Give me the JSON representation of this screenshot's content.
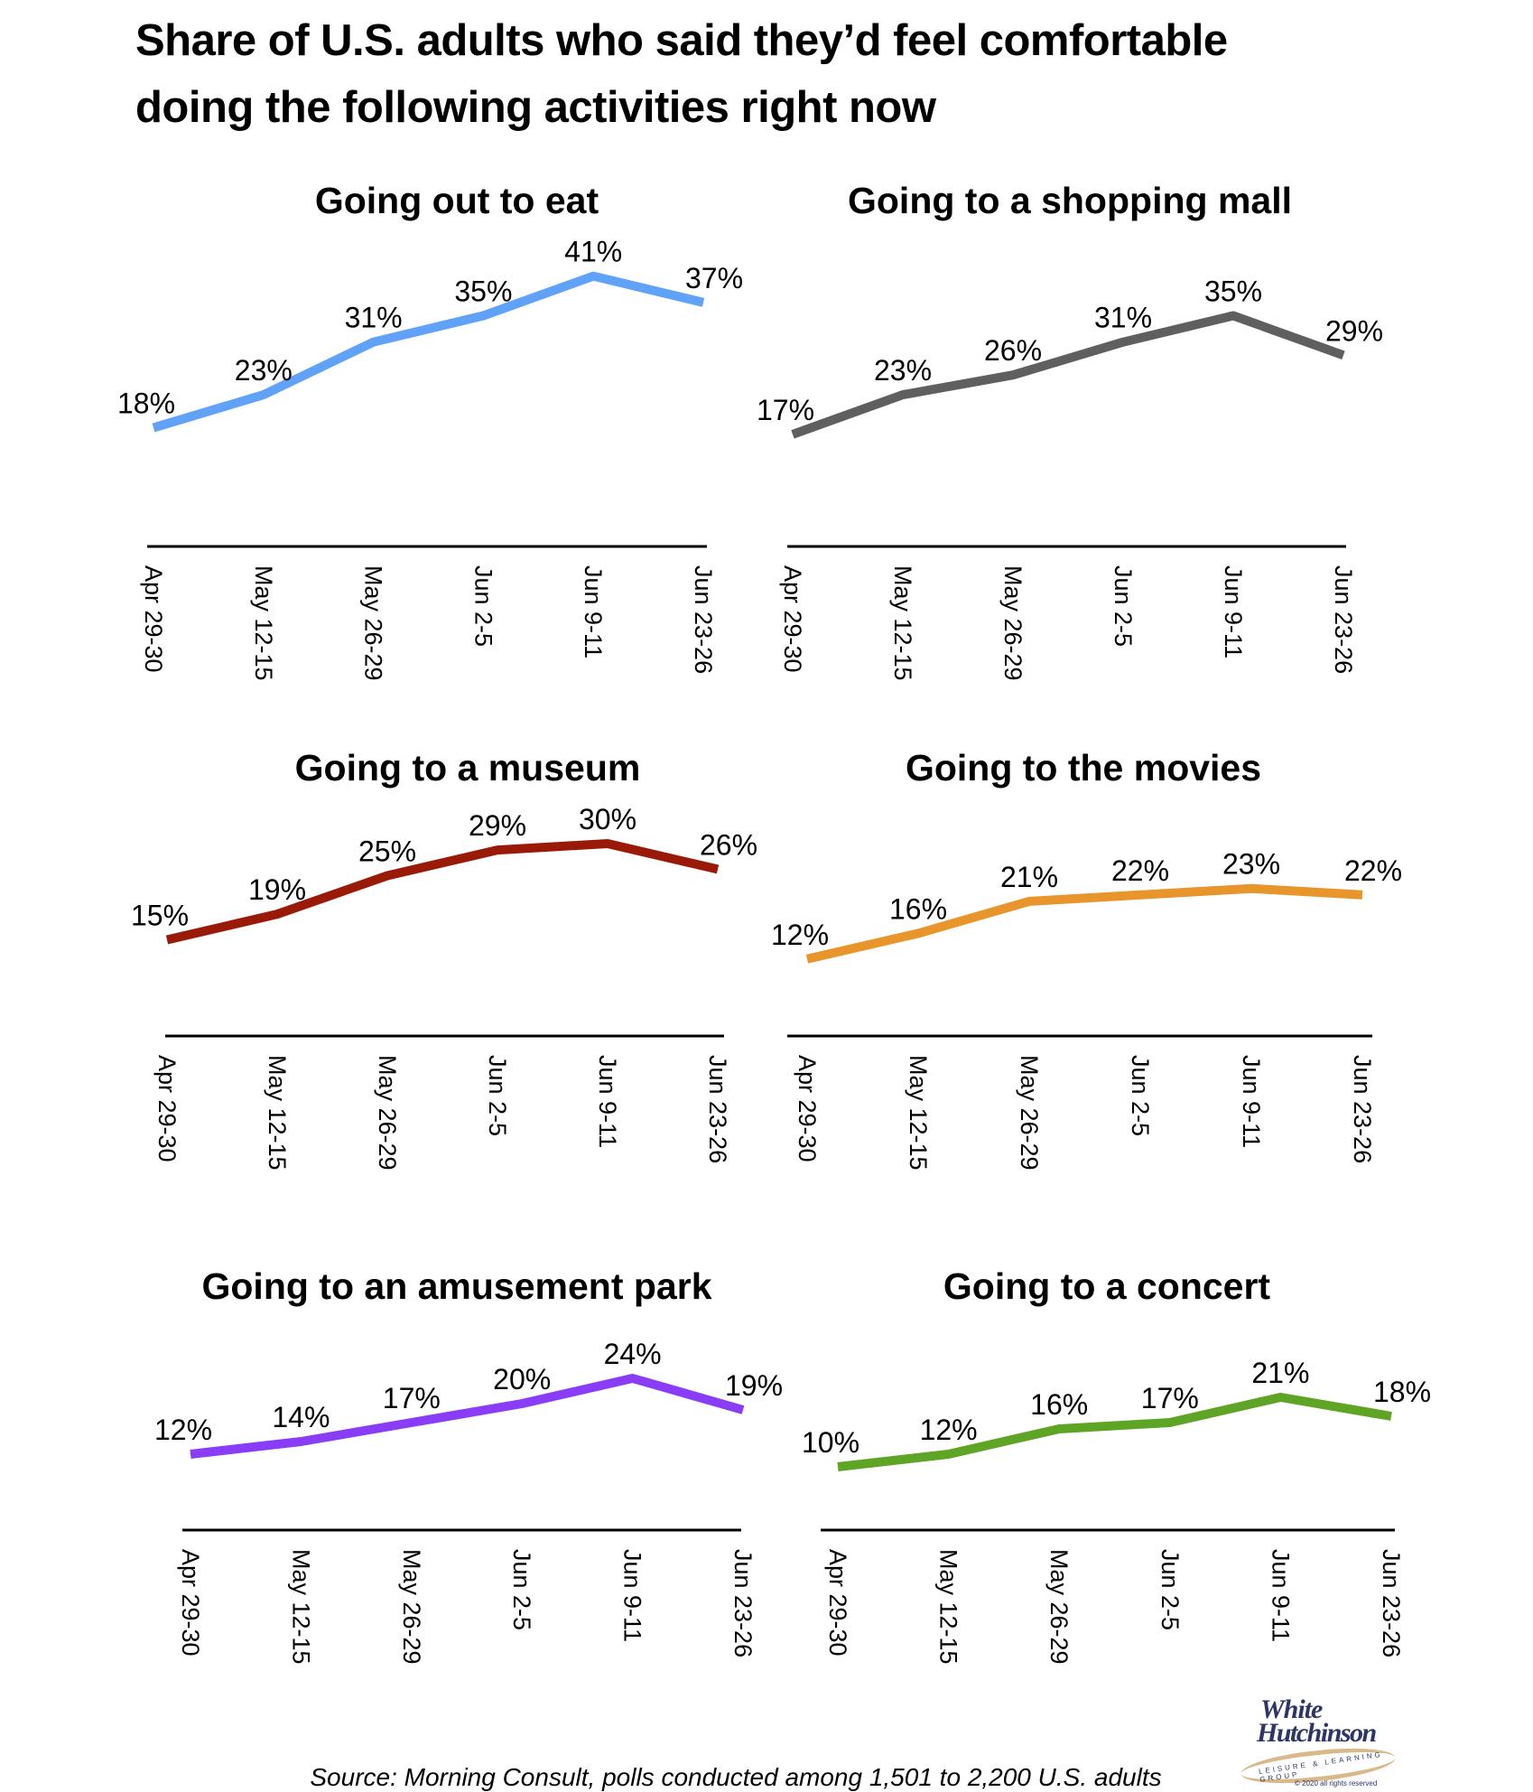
{
  "title_line1": "Share of U.S. adults who said they’d feel comfortable",
  "title_line2": "doing the following activities right now",
  "source": "Source: Morning Consult, polls conducted among 1,501 to 2,200 U.S. adults",
  "logo": {
    "line1": "White",
    "line2": "Hutchinson",
    "tagline": "LEISURE & LEARNING GROUP",
    "copyright": "© 2020 all rights reserved"
  },
  "chart_data": [
    {
      "type": "line",
      "title": "Going out to eat",
      "categories": [
        "Apr 29-30",
        "May 12-15",
        "May 26-29",
        "Jun 2-5",
        "Jun 9-11",
        "Jun 23-26"
      ],
      "values": [
        18,
        23,
        31,
        35,
        41,
        37
      ],
      "labels": [
        "18%",
        "23%",
        "31%",
        "35%",
        "41%",
        "37%"
      ],
      "color": "#5fa2f7",
      "ylim": [
        0,
        45
      ],
      "grid": false
    },
    {
      "type": "line",
      "title": "Going to a shopping mall",
      "categories": [
        "Apr 29-30",
        "May 12-15",
        "May 26-29",
        "Jun 2-5",
        "Jun 9-11",
        "Jun 23-26"
      ],
      "values": [
        17,
        23,
        26,
        31,
        35,
        29
      ],
      "labels": [
        "17%",
        "23%",
        "26%",
        "31%",
        "35%",
        "29%"
      ],
      "color": "#5f5f5f",
      "ylim": [
        0,
        45
      ],
      "grid": false
    },
    {
      "type": "line",
      "title": "Going to a museum",
      "categories": [
        "Apr 29-30",
        "May 12-15",
        "May 26-29",
        "Jun 2-5",
        "Jun 9-11",
        "Jun 23-26"
      ],
      "values": [
        15,
        19,
        25,
        29,
        30,
        26
      ],
      "labels": [
        "15%",
        "19%",
        "25%",
        "29%",
        "30%",
        "26%"
      ],
      "color": "#9a1a08",
      "ylim": [
        0,
        35
      ],
      "grid": false
    },
    {
      "type": "line",
      "title": "Going to the movies",
      "categories": [
        "Apr 29-30",
        "May 12-15",
        "May 26-29",
        "Jun 2-5",
        "Jun 9-11",
        "Jun 23-26"
      ],
      "values": [
        12,
        16,
        21,
        22,
        23,
        22
      ],
      "labels": [
        "12%",
        "16%",
        "21%",
        "22%",
        "23%",
        "22%"
      ],
      "color": "#e8952b",
      "ylim": [
        0,
        35
      ],
      "grid": false
    },
    {
      "type": "line",
      "title": "Going to an amusement park",
      "categories": [
        "Apr 29-30",
        "May 12-15",
        "May 26-29",
        "Jun 2-5",
        "Jun 9-11",
        "Jun 23-26"
      ],
      "values": [
        12,
        14,
        17,
        20,
        24,
        19
      ],
      "labels": [
        "12%",
        "14%",
        "17%",
        "20%",
        "24%",
        "19%"
      ],
      "color": "#8a3df7",
      "ylim": [
        0,
        28
      ],
      "grid": false
    },
    {
      "type": "line",
      "title": "Going to a concert",
      "categories": [
        "Apr 29-30",
        "May 12-15",
        "May 26-29",
        "Jun 2-5",
        "Jun 9-11",
        "Jun 23-26"
      ],
      "values": [
        10,
        12,
        16,
        17,
        21,
        18
      ],
      "labels": [
        "10%",
        "12%",
        "16%",
        "17%",
        "21%",
        "18%"
      ],
      "color": "#5ea526",
      "ylim": [
        0,
        28
      ],
      "grid": false
    }
  ]
}
